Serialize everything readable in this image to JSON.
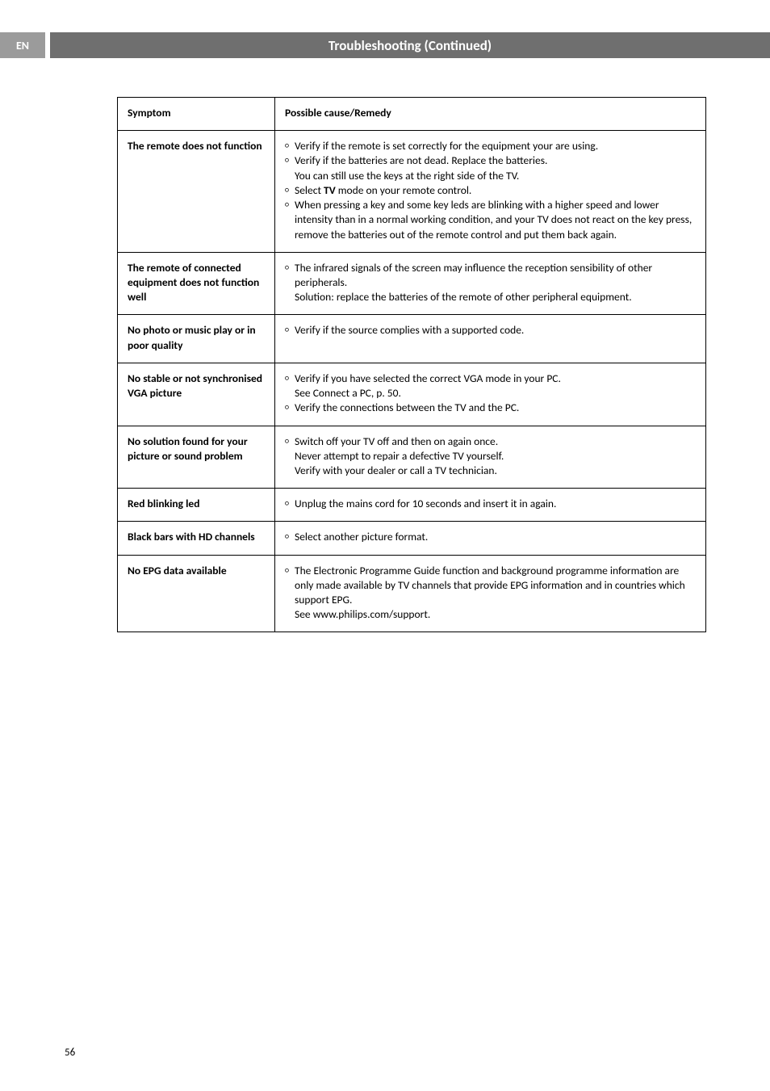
{
  "header": {
    "lang": "EN",
    "title": "Troubleshooting  (Continued)"
  },
  "table": {
    "head": {
      "symptom": "Symptom",
      "remedy": "Possible cause/Remedy"
    },
    "rows": [
      {
        "symptom": "The remote does not function",
        "items": [
          {
            "text": "Verify if the remote is set correctly for the equipment your are using."
          },
          {
            "text": "Verify if the batteries are not dead. Replace the batteries.",
            "sub": "You can still use the keys at the right side of the TV."
          },
          {
            "html": "Select <b>TV</b> mode on your remote control."
          },
          {
            "text": "When pressing a key and some key leds are blinking with a higher speed and lower intensity than in a normal working condition, and your TV does not react on the key press, remove the batteries out of the remote control and put them back again."
          }
        ]
      },
      {
        "symptom": "The remote of connected equipment does not function well",
        "items": [
          {
            "text": "The infrared signals of the screen may influence the reception sensibility of other peripherals.",
            "sub": "Solution: replace the batteries of the remote of other peripheral equipment."
          }
        ]
      },
      {
        "symptom": "No photo or music play or in poor quality",
        "items": [
          {
            "text": "Verify if the source complies with a supported code."
          }
        ]
      },
      {
        "symptom": "No stable or not synchronised VGA picture",
        "items": [
          {
            "text": "Verify if you have selected the correct VGA mode in your PC.",
            "sub": "See Connect a PC, p. 50."
          },
          {
            "text": "Verify the connections between the TV and the PC."
          }
        ]
      },
      {
        "symptom": "No solution found for your picture or sound problem",
        "items": [
          {
            "text": "Switch off your TV off and then on again once.",
            "sub": "Never attempt to repair a defective TV yourself.\nVerify with your dealer or call a TV technician."
          }
        ]
      },
      {
        "symptom": "Red blinking led",
        "items": [
          {
            "text": "Unplug the mains cord for 10 seconds and insert it in again."
          }
        ]
      },
      {
        "symptom": "Black bars with HD channels",
        "items": [
          {
            "text": "Select another picture format."
          }
        ]
      },
      {
        "symptom": "No EPG data available",
        "items": [
          {
            "text": "The Electronic Programme Guide function and background programme information are only made available by TV channels that provide EPG information and in countries which support EPG.",
            "sub": "See www.philips.com/support."
          }
        ]
      }
    ]
  },
  "page_number": "56",
  "colors": {
    "lang_tab_bg": "#9b9b9b",
    "title_bar_bg": "#6f6f6f",
    "header_text": "#ffffff",
    "border": "#000000",
    "text": "#000000",
    "background": "#ffffff"
  },
  "typography": {
    "body_fontsize_pt": 10,
    "header_fontsize_pt": 13,
    "font_family": "Gill Sans / humanist sans-serif"
  }
}
